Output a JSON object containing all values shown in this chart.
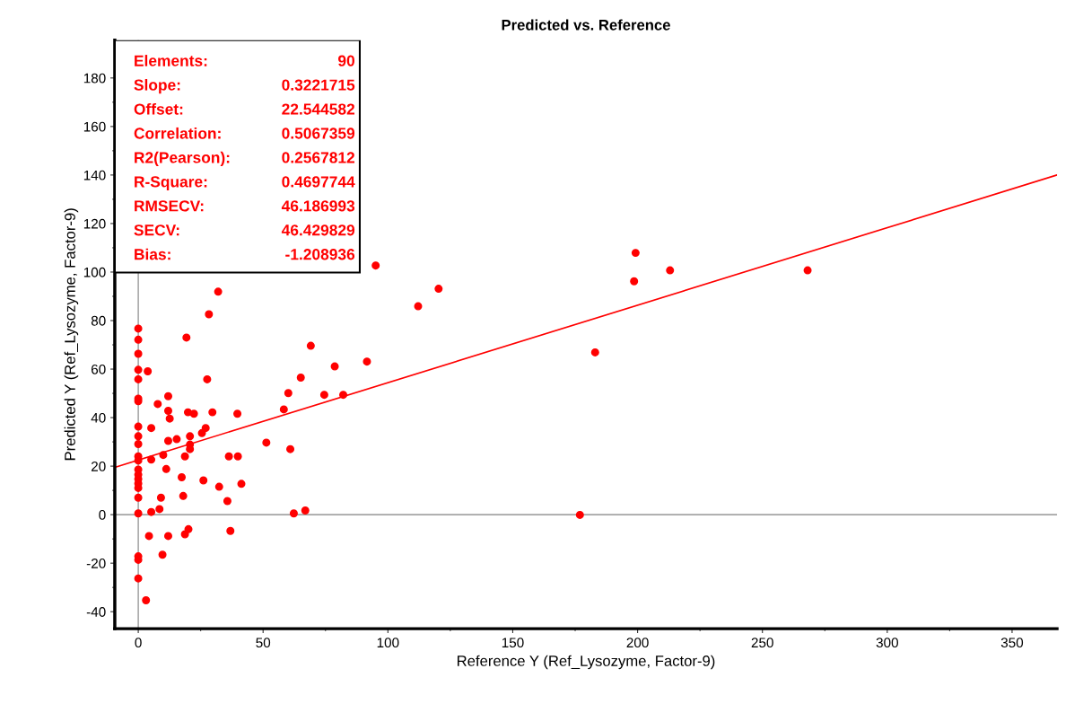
{
  "chart_data": {
    "type": "scatter",
    "title": "Predicted vs. Reference",
    "xlabel": "Reference Y (Ref_Lysozyme, Factor-9)",
    "ylabel": "Predicted Y (Ref_Lysozyme, Factor-9)",
    "xlim": [
      -9.4,
      368
    ],
    "ylim": [
      -47,
      195.6
    ],
    "xticks": [
      0,
      50,
      100,
      150,
      200,
      250,
      300,
      350
    ],
    "yticks": [
      -40,
      -20,
      0,
      20,
      40,
      60,
      80,
      100,
      120,
      140,
      160,
      180
    ],
    "grid": false,
    "legend": false,
    "marker": "circle",
    "ref_lines": [
      {
        "axis": "x",
        "value": 0,
        "color": "#999999"
      },
      {
        "axis": "y",
        "value": 0,
        "color": "#808080"
      }
    ],
    "annotations": [
      "Elements:",
      "90",
      "Slope:",
      "0.3221715",
      "Offset:",
      "22.544582",
      "Correlation:",
      "0.5067359",
      "R2(Pearson):",
      "0.2567812",
      "R-Square:",
      "0.4697744",
      "RMSECV:",
      "46.186993",
      "SECV:",
      "46.429829",
      "Bias:",
      "-1.208936"
    ],
    "series": [
      {
        "color": "#ff0000",
        "x": [
          0,
          0,
          0,
          0,
          0,
          0,
          0,
          0,
          0,
          0,
          0,
          0,
          0,
          0,
          0,
          0,
          0,
          0,
          0,
          0,
          0,
          0,
          3.8,
          3.1,
          19.3,
          28.3,
          12,
          7.8,
          12,
          12.6,
          5.2,
          19.9,
          22.3,
          29.7,
          39.7,
          27.6,
          60.1,
          58.3,
          65.1,
          69.1,
          78.7,
          91.6,
          74.5,
          82.1,
          20.7,
          27,
          25.5,
          15.4,
          12,
          20.7,
          20.7,
          5.2,
          10,
          18.7,
          36.3,
          39.9,
          51.3,
          60.9,
          11.2,
          17.4,
          26.1,
          32.4,
          41.3,
          9.1,
          18,
          35.7,
          5.2,
          8.5,
          62.3,
          66.9,
          4.3,
          12,
          18.7,
          20.1,
          36.9,
          9.7,
          32,
          95.1,
          120.3,
          112.1,
          183,
          176.9,
          199.2,
          198.6,
          213,
          268.1
        ],
        "values": [
          76.7,
          72.1,
          66.3,
          59.7,
          55.8,
          47.8,
          46.8,
          36.3,
          32.3,
          29.1,
          24,
          22.3,
          18.6,
          16.5,
          14.7,
          12.8,
          11,
          7,
          0.5,
          -17.2,
          -18.6,
          -26.3,
          59.1,
          -35.3,
          73,
          82.6,
          48.8,
          45.6,
          42.8,
          39.6,
          35.7,
          42.2,
          41.6,
          42.2,
          41.6,
          55.8,
          50.1,
          43.4,
          56.5,
          69.6,
          61.1,
          63.1,
          49.4,
          49.4,
          32.3,
          35.7,
          33.6,
          31.1,
          30.4,
          28.9,
          27,
          22.7,
          24.6,
          24,
          24,
          24,
          29.7,
          27,
          18.8,
          15.4,
          14.1,
          11.5,
          12.7,
          7,
          7.7,
          5.6,
          1.1,
          2.3,
          0.5,
          1.7,
          -8.8,
          -8.8,
          -8.1,
          -6,
          -6.7,
          -16.5,
          91.9,
          102.7,
          93.1,
          85.9,
          66.9,
          -0.1,
          107.9,
          96.2,
          100.7,
          100.7
        ]
      },
      {
        "type": "line",
        "color": "#ff0000",
        "marker": "none",
        "x": [
          -9.4,
          368
        ],
        "values": [
          19.5,
          140
        ]
      }
    ]
  }
}
